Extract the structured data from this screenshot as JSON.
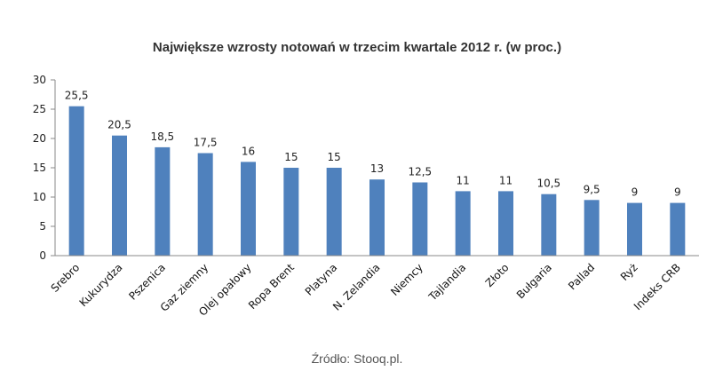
{
  "chart_data": {
    "type": "bar",
    "title": "Największe wzrosty notowań w trzecim kwartale 2012 r. (w proc.)",
    "xlabel": "",
    "ylabel": "",
    "ylim": [
      0,
      30
    ],
    "yticks": [
      "0",
      "5",
      "10",
      "15",
      "20",
      "25",
      "30"
    ],
    "grid": false,
    "legend": "none",
    "categories": [
      "Srebro",
      "Kukurydza",
      "Pszenica",
      "Gaz ziemny",
      "Olej opałowy",
      "Ropa Brent",
      "Platyna",
      "N. Zelandia",
      "Niemcy",
      "Tajlandia",
      "Złoto",
      "Bułgaria",
      "Pallad",
      "Ryż",
      "Indeks CRB"
    ],
    "values": [
      25.5,
      20.5,
      18.5,
      17.5,
      16,
      15,
      15,
      13,
      12.5,
      11,
      11,
      10.5,
      9.5,
      9,
      9
    ],
    "data_labels": [
      "25,5",
      "20,5",
      "18,5",
      "17,5",
      "16",
      "15",
      "15",
      "13",
      "12,5",
      "11",
      "11",
      "10,5",
      "9,5",
      "9",
      "9"
    ],
    "bar_color": "#4f81bd",
    "source": "Źródło: Stooq.pl."
  }
}
